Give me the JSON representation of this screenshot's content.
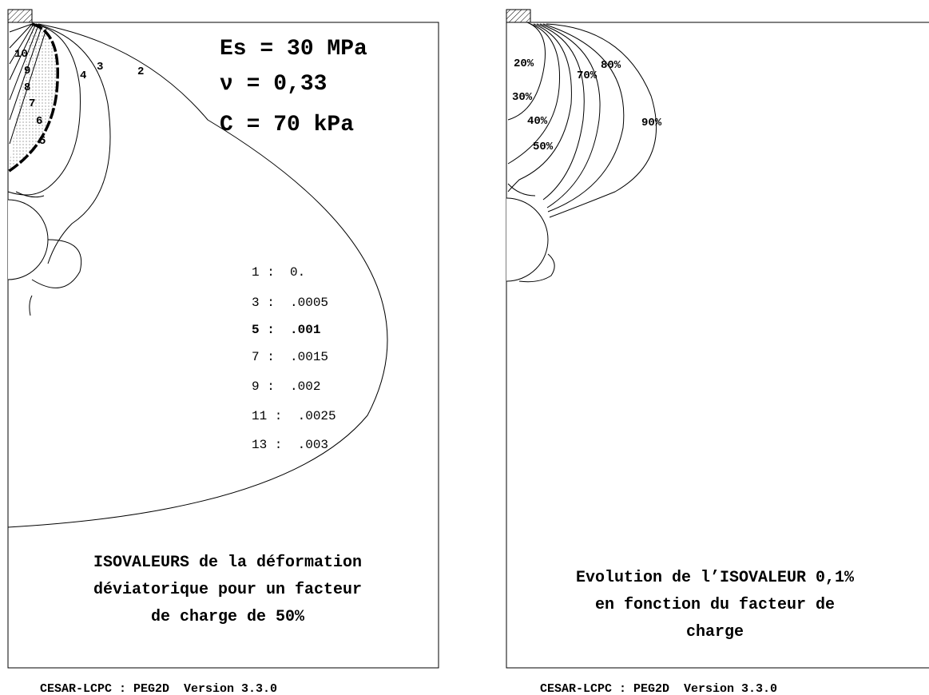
{
  "left_panel": {
    "parameters": [
      "Es = 30 MPa",
      "ν = 0,33",
      "C = 70 kPa"
    ],
    "contour_labels": [
      "10",
      "9",
      "8",
      "7",
      "6",
      "5",
      "4",
      "3",
      "2"
    ],
    "legend": [
      "1 :  0.",
      "3 :  .0005",
      "5 :  .001",
      "7 :  .0015",
      "9 :  .002",
      "11 :  .0025",
      "13 :  .003"
    ],
    "caption": [
      "ISOVALEURS de la déformation",
      "déviatorique pour un facteur",
      "de charge de 50%"
    ],
    "footer": "CESAR-LCPC : PEG2D  Version 3.3.0"
  },
  "right_panel": {
    "contour_labels": [
      "20%",
      "30%",
      "40%",
      "50%",
      "70%",
      "80%",
      "90%"
    ],
    "caption": [
      "Evolution de l’ISOVALEUR 0,1%",
      "en fonction du facteur de",
      "charge"
    ],
    "footer": "CESAR-LCPC : PEG2D  Version 3.3.0"
  }
}
